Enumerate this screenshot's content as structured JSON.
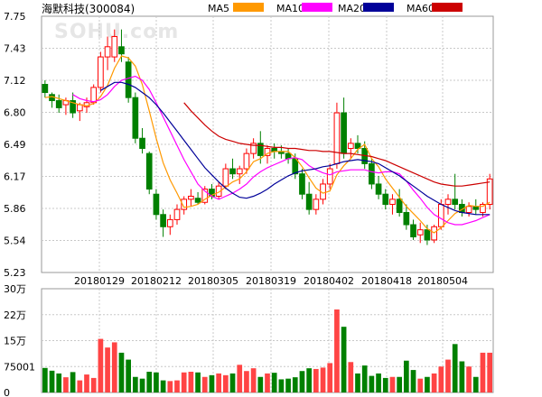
{
  "chart_data": [
    {
      "type": "candlestick",
      "title": "海默科技(300084)",
      "watermark": "SOHU.com",
      "ylim": [
        5.23,
        7.75
      ],
      "y_ticks": [
        "7.75",
        "7.43",
        "7.12",
        "6.80",
        "6.49",
        "6.17",
        "5.86",
        "5.54",
        "5.23"
      ],
      "x_ticks": [
        "20180129",
        "20180212",
        "20180305",
        "20180319",
        "20180402",
        "20180418",
        "20180504"
      ],
      "grid": true,
      "colors": {
        "up": "#ff0000",
        "down": "#008000",
        "MA5": "#ff9900",
        "MA10": "#ff00ff",
        "MA20": "#000099",
        "MA60": "#cc0000"
      },
      "legend": [
        {
          "name": "MA5",
          "color": "#ff9900"
        },
        {
          "name": "MA10",
          "color": "#ff00ff"
        },
        {
          "name": "MA20",
          "color": "#000099"
        },
        {
          "name": "MA60",
          "color": "#cc0000"
        }
      ],
      "candles": [
        [
          7.08,
          7.12,
          6.95,
          7.0
        ],
        [
          6.98,
          7.0,
          6.85,
          6.92
        ],
        [
          6.92,
          6.98,
          6.8,
          6.85
        ],
        [
          6.88,
          6.95,
          6.78,
          6.92
        ],
        [
          6.92,
          7.0,
          6.75,
          6.8
        ],
        [
          6.82,
          6.9,
          6.72,
          6.88
        ],
        [
          6.86,
          6.95,
          6.8,
          6.9
        ],
        [
          6.9,
          7.08,
          6.88,
          7.05
        ],
        [
          7.05,
          7.4,
          7.0,
          7.35
        ],
        [
          7.35,
          7.55,
          7.22,
          7.45
        ],
        [
          7.35,
          7.62,
          7.3,
          7.55
        ],
        [
          7.45,
          7.62,
          7.3,
          7.38
        ],
        [
          7.3,
          7.35,
          6.9,
          6.95
        ],
        [
          6.95,
          7.0,
          6.5,
          6.55
        ],
        [
          6.55,
          6.65,
          6.4,
          6.45
        ],
        [
          6.4,
          6.42,
          6.0,
          6.05
        ],
        [
          6.0,
          6.05,
          5.75,
          5.8
        ],
        [
          5.8,
          5.85,
          5.58,
          5.68
        ],
        [
          5.68,
          5.8,
          5.6,
          5.75
        ],
        [
          5.75,
          5.9,
          5.7,
          5.85
        ],
        [
          5.85,
          5.98,
          5.8,
          5.95
        ],
        [
          5.95,
          6.05,
          5.88,
          5.98
        ],
        [
          5.96,
          6.02,
          5.9,
          5.92
        ],
        [
          5.92,
          6.08,
          5.9,
          6.05
        ],
        [
          6.05,
          6.1,
          5.95,
          5.98
        ],
        [
          5.98,
          6.12,
          5.95,
          6.08
        ],
        [
          6.08,
          6.3,
          6.05,
          6.25
        ],
        [
          6.25,
          6.35,
          6.15,
          6.2
        ],
        [
          6.2,
          6.28,
          6.1,
          6.25
        ],
        [
          6.25,
          6.45,
          6.2,
          6.4
        ],
        [
          6.4,
          6.55,
          6.35,
          6.5
        ],
        [
          6.5,
          6.62,
          6.3,
          6.38
        ],
        [
          6.38,
          6.48,
          6.3,
          6.45
        ],
        [
          6.45,
          6.5,
          6.35,
          6.42
        ],
        [
          6.42,
          6.48,
          6.35,
          6.4
        ],
        [
          6.4,
          6.45,
          6.3,
          6.35
        ],
        [
          6.35,
          6.4,
          6.15,
          6.2
        ],
        [
          6.2,
          6.25,
          5.95,
          6.0
        ],
        [
          6.0,
          6.12,
          5.8,
          5.85
        ],
        [
          5.85,
          6.0,
          5.8,
          5.95
        ],
        [
          5.95,
          6.15,
          5.9,
          6.1
        ],
        [
          6.1,
          6.3,
          6.05,
          6.25
        ],
        [
          6.3,
          6.9,
          6.25,
          6.8
        ],
        [
          6.8,
          6.95,
          6.35,
          6.4
        ],
        [
          6.45,
          6.55,
          6.35,
          6.5
        ],
        [
          6.5,
          6.58,
          6.4,
          6.45
        ],
        [
          6.45,
          6.52,
          6.25,
          6.3
        ],
        [
          6.3,
          6.35,
          6.05,
          6.1
        ],
        [
          6.1,
          6.18,
          5.95,
          6.0
        ],
        [
          6.0,
          6.05,
          5.85,
          5.9
        ],
        [
          5.9,
          6.0,
          5.8,
          5.95
        ],
        [
          5.95,
          6.05,
          5.78,
          5.82
        ],
        [
          5.82,
          5.9,
          5.65,
          5.7
        ],
        [
          5.7,
          5.75,
          5.55,
          5.58
        ],
        [
          5.6,
          5.72,
          5.52,
          5.65
        ],
        [
          5.65,
          5.7,
          5.5,
          5.55
        ],
        [
          5.55,
          5.7,
          5.52,
          5.68
        ],
        [
          5.68,
          5.95,
          5.65,
          5.9
        ],
        [
          5.9,
          6.0,
          5.8,
          5.95
        ],
        [
          5.95,
          6.2,
          5.85,
          5.9
        ],
        [
          5.9,
          5.95,
          5.78,
          5.82
        ],
        [
          5.82,
          5.92,
          5.78,
          5.88
        ],
        [
          5.88,
          5.95,
          5.8,
          5.85
        ],
        [
          5.82,
          5.92,
          5.78,
          5.9
        ],
        [
          5.9,
          6.2,
          5.85,
          6.15
        ]
      ],
      "MA5": [
        6.95,
        6.96,
        6.94,
        6.92,
        6.9,
        6.88,
        6.87,
        6.89,
        6.96,
        7.07,
        7.24,
        7.36,
        7.34,
        7.26,
        7.08,
        6.82,
        6.55,
        6.31,
        6.14,
        6.01,
        5.87,
        5.88,
        5.9,
        5.95,
        5.99,
        6.02,
        6.07,
        6.12,
        6.15,
        6.22,
        6.32,
        6.35,
        6.4,
        6.42,
        6.42,
        6.42,
        6.36,
        6.27,
        6.16,
        6.06,
        6.01,
        6.03,
        6.19,
        6.28,
        6.35,
        6.44,
        6.49,
        6.35,
        6.27,
        6.15,
        6.06,
        5.97,
        5.88,
        5.81,
        5.74,
        5.66,
        5.62,
        5.67,
        5.74,
        5.81,
        5.85,
        5.89,
        5.88,
        5.88,
        5.92
      ],
      "MA10": [
        null,
        null,
        null,
        null,
        6.98,
        6.94,
        6.92,
        6.91,
        6.93,
        6.98,
        7.06,
        7.12,
        7.14,
        7.16,
        7.12,
        7.03,
        6.9,
        6.76,
        6.62,
        6.48,
        6.34,
        6.22,
        6.1,
        6.03,
        5.98,
        5.95,
        5.98,
        6.01,
        6.05,
        6.1,
        6.17,
        6.22,
        6.26,
        6.29,
        6.32,
        6.35,
        6.36,
        6.34,
        6.28,
        6.24,
        6.21,
        6.19,
        6.22,
        6.23,
        6.24,
        6.24,
        6.24,
        6.22,
        6.21,
        6.22,
        6.22,
        6.2,
        6.13,
        6.04,
        5.96,
        5.87,
        5.8,
        5.76,
        5.72,
        5.7,
        5.7,
        5.72,
        5.74,
        5.77,
        5.8
      ],
      "MA20": [
        null,
        null,
        null,
        null,
        null,
        null,
        null,
        null,
        7.02,
        7.06,
        7.1,
        7.1,
        7.08,
        7.05,
        7.0,
        6.95,
        6.88,
        6.8,
        6.71,
        6.62,
        6.53,
        6.44,
        6.35,
        6.26,
        6.19,
        6.12,
        6.06,
        6.01,
        5.97,
        5.96,
        5.98,
        6.01,
        6.05,
        6.1,
        6.14,
        6.18,
        6.21,
        6.23,
        6.24,
        6.25,
        6.27,
        6.28,
        6.3,
        6.32,
        6.33,
        6.34,
        6.33,
        6.32,
        6.3,
        6.26,
        6.22,
        6.18,
        6.13,
        6.08,
        6.03,
        5.98,
        5.94,
        5.9,
        5.87,
        5.84,
        5.82,
        5.81,
        5.8,
        5.8,
        5.8
      ],
      "MA60": [
        null,
        null,
        null,
        null,
        null,
        null,
        null,
        null,
        null,
        null,
        null,
        null,
        null,
        null,
        null,
        null,
        null,
        null,
        null,
        null,
        6.9,
        6.82,
        6.75,
        6.68,
        6.62,
        6.57,
        6.54,
        6.52,
        6.5,
        6.49,
        6.48,
        6.48,
        6.47,
        6.46,
        6.46,
        6.45,
        6.45,
        6.44,
        6.43,
        6.43,
        6.42,
        6.42,
        6.41,
        6.4,
        6.4,
        6.39,
        6.38,
        6.37,
        6.35,
        6.33,
        6.3,
        6.27,
        6.24,
        6.21,
        6.18,
        6.15,
        6.12,
        6.1,
        6.09,
        6.08,
        6.08,
        6.09,
        6.1,
        6.11,
        6.12
      ]
    },
    {
      "type": "bar",
      "ylim": [
        0,
        300000
      ],
      "y_ticks": [
        "30万",
        "22万",
        "15万",
        "75001",
        "0"
      ],
      "volumes": [
        71000,
        63000,
        55000,
        44000,
        59000,
        35000,
        52000,
        42000,
        155000,
        130000,
        145000,
        115000,
        95000,
        45000,
        40000,
        60000,
        58000,
        35000,
        33000,
        35000,
        58000,
        60000,
        58000,
        45000,
        50000,
        55000,
        50000,
        55000,
        80000,
        62000,
        70000,
        45000,
        55000,
        57000,
        38000,
        40000,
        44000,
        62000,
        70000,
        68000,
        72000,
        85000,
        240000,
        190000,
        88000,
        55000,
        78000,
        48000,
        55000,
        42000,
        45000,
        45000,
        92000,
        65000,
        40000,
        45000,
        55000,
        75000,
        95000,
        140000,
        90000,
        75000,
        45000,
        115000,
        115000
      ]
    }
  ]
}
